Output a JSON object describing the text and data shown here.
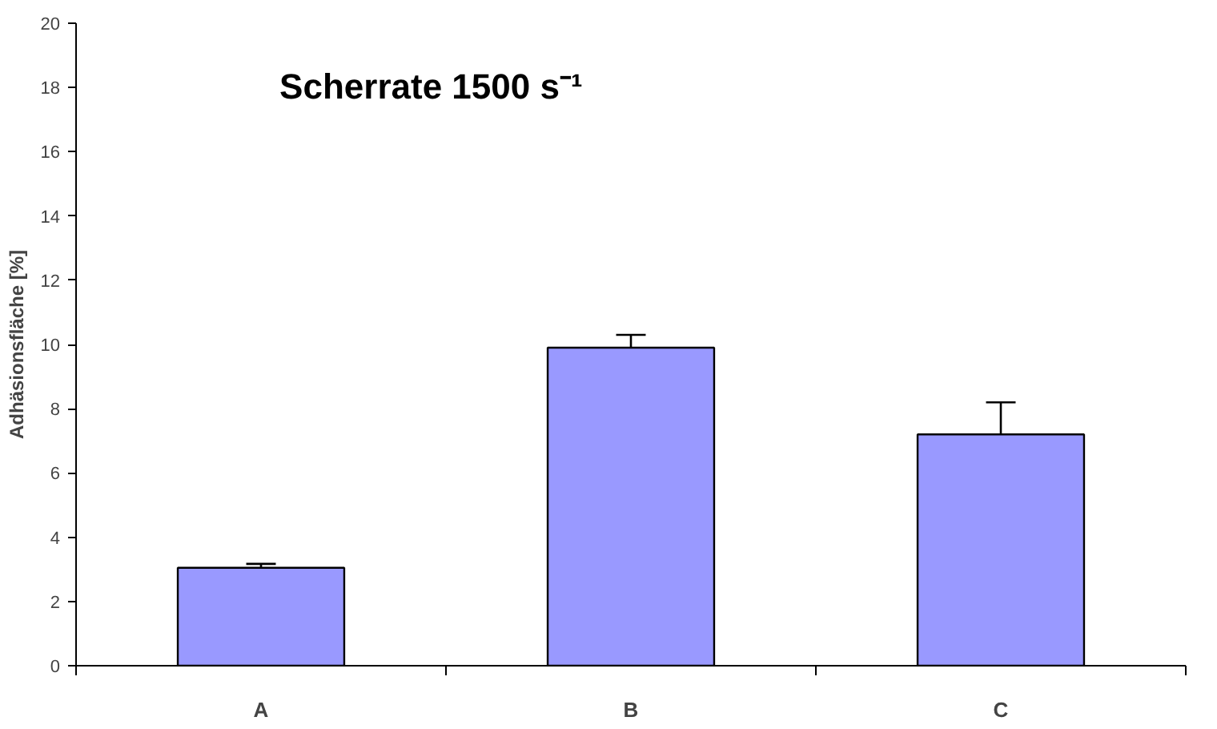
{
  "chart_data": {
    "type": "bar",
    "title": "Scherrate 1500 s⁻¹",
    "ylabel": "Adhäsionsfläche [%]",
    "categories": [
      "A",
      "B",
      "C"
    ],
    "values": [
      3.05,
      9.9,
      7.2
    ],
    "errors": [
      [
        3.05,
        3.17
      ],
      [
        9.9,
        10.3
      ],
      [
        7.2,
        8.2
      ]
    ],
    "color": "#9999ff",
    "ylim": [
      0,
      20
    ],
    "yticks": [
      0,
      2,
      4,
      6,
      8,
      10,
      12,
      14,
      16,
      18,
      20
    ],
    "grid": false
  }
}
